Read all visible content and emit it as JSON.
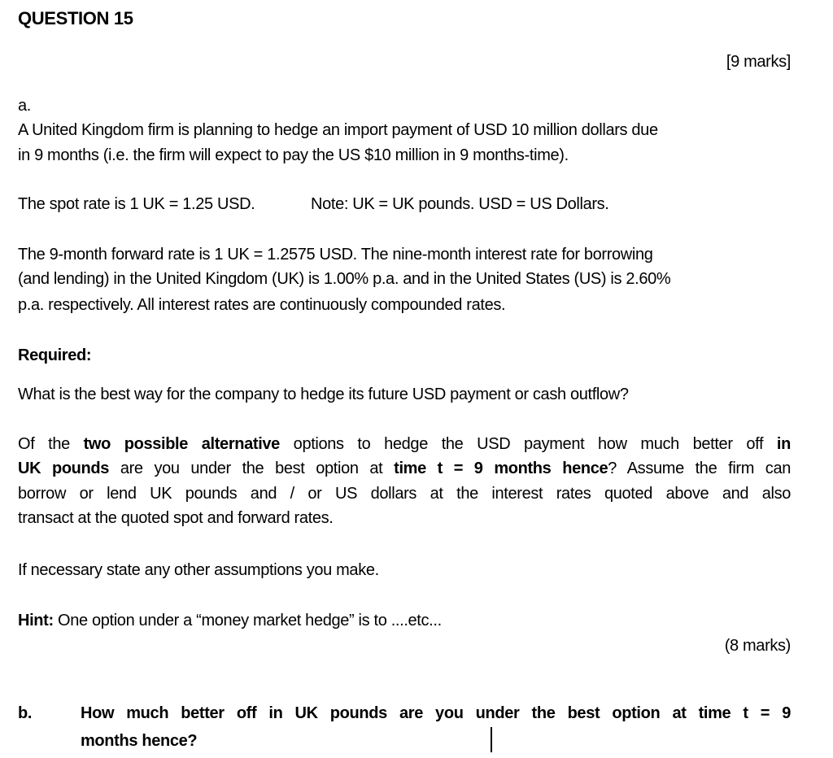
{
  "question": {
    "title": "QUESTION 15",
    "marks_total": "[9 marks]",
    "part_a": {
      "label": "a.",
      "intro": [
        "A United Kingdom firm is planning to hedge an import payment of USD 10 million dollars due",
        "in 9 months (i.e. the firm will expect to pay the US $10 million in 9 months-time)."
      ],
      "spot": "The spot rate is 1 UK = 1.25 USD.",
      "note": "Note: UK = UK pounds. USD = US Dollars.",
      "forward": [
        "The 9-month forward rate is 1 UK = 1.2575 USD.  The nine-month interest rate for borrowing",
        "(and lending) in the United Kingdom (UK) is 1.00% p.a. and in the United States (US) is 2.60%",
        "p.a. respectively. All interest rates are continuously compounded rates."
      ],
      "required_label": "Required:",
      "question_1": "What is the best way for the company to hedge its future USD payment or cash outflow?",
      "question_2": {
        "s1": "Of the ",
        "b1": "two possible alternative",
        "s2": " options to hedge the USD payment how much better off ",
        "b2": "in",
        "b3": "UK pounds",
        "s3": " are you under the best option at ",
        "b4": "time t = 9 months hence",
        "s4": "? Assume the firm can",
        "line3": "borrow or lend UK pounds and / or US dollars at the interest rates quoted above and also",
        "line4": "transact at the quoted spot and forward rates."
      },
      "assumptions": "If necessary state any other assumptions you make.",
      "hint_label": "Hint:",
      "hint": " One option under a “money market hedge” is to ....etc...",
      "marks": "(8 marks)"
    },
    "part_b": {
      "label": "b.",
      "line1": "How much better off in UK pounds are you under the best option at time t = 9",
      "line2": "months hence?"
    }
  }
}
